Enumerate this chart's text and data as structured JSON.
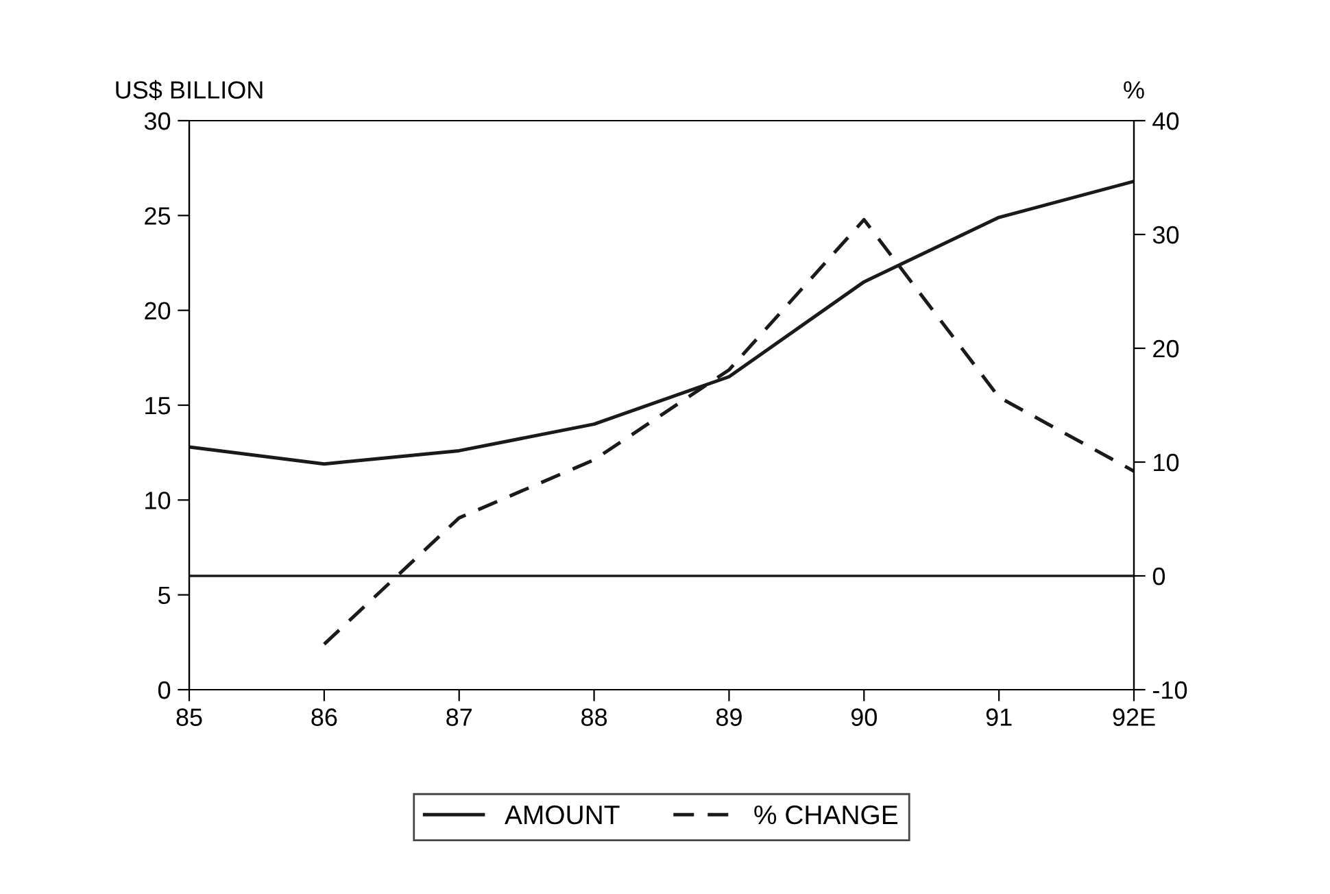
{
  "chart_data": {
    "type": "line",
    "categories": [
      "85",
      "86",
      "87",
      "88",
      "89",
      "90",
      "91",
      "92E"
    ],
    "ylabel": "US$ BILLION",
    "y2label": "%",
    "ylim": [
      0,
      30
    ],
    "yticks": [
      0,
      5,
      10,
      15,
      20,
      25,
      30
    ],
    "y2lim": [
      -10,
      40
    ],
    "y2ticks": [
      -10,
      0,
      10,
      20,
      30,
      40
    ],
    "series": [
      {
        "name": "AMOUNT",
        "color": "#1a1a1a",
        "line_style": "solid",
        "values": [
          12.8,
          11.9,
          12.6,
          14.0,
          16.5,
          21.5,
          24.9,
          26.8
        ]
      },
      {
        "name": "% CHANGE",
        "color": "#1a1a1a",
        "line_style": "dashed",
        "axis": "y2",
        "values": [
          null,
          -6.0,
          5.1,
          10.2,
          18.1,
          31.3,
          15.7,
          9.2
        ]
      }
    ],
    "ref_lines": [
      {
        "axis": "y2",
        "value": 0,
        "color": "#1a1a1a",
        "line_style": "solid"
      }
    ],
    "legend": "bottom",
    "grid": false,
    "marker": "none"
  }
}
